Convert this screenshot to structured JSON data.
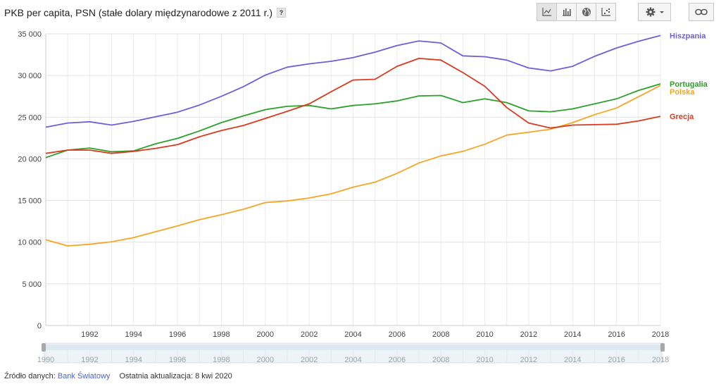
{
  "header": {
    "title": "PKB per capita, PSN (stałe dolary międzynarodowe z 2011 r.)",
    "help_label": "?"
  },
  "toolbar": {
    "buttons": [
      {
        "name": "line-chart-button",
        "icon": "line-chart-icon",
        "selected": true
      },
      {
        "name": "bar-chart-button",
        "icon": "bar-chart-icon",
        "selected": false
      },
      {
        "name": "map-button",
        "icon": "globe-icon",
        "selected": false
      },
      {
        "name": "scatter-button",
        "icon": "scatter-icon",
        "selected": false
      }
    ],
    "settings_icon": "gear-icon",
    "link_icon": "link-icon"
  },
  "footer": {
    "source_label": "Źródło danych:",
    "source_link": "Bank Światowy",
    "updated": "Ostatnia aktualizacja: 8 kwi 2020"
  },
  "range_slider": {
    "start": 1990,
    "end": 2018,
    "tick_labels": [
      "1990",
      "1992",
      "1994",
      "1996",
      "1998",
      "2000",
      "2002",
      "2004",
      "2006",
      "2008",
      "2010",
      "2012",
      "2014",
      "2016",
      "2018"
    ]
  },
  "chart_data": {
    "type": "line",
    "title": "PKB per capita, PSN (stałe dolary międzynarodowe z 2011 r.)",
    "x": [
      1990,
      1991,
      1992,
      1993,
      1994,
      1995,
      1996,
      1997,
      1998,
      1999,
      2000,
      2001,
      2002,
      2003,
      2004,
      2005,
      2006,
      2007,
      2008,
      2009,
      2010,
      2011,
      2012,
      2013,
      2014,
      2015,
      2016,
      2017,
      2018
    ],
    "xlim": [
      1990,
      2018
    ],
    "ylim": [
      0,
      35000
    ],
    "y_ticks": [
      0,
      5000,
      10000,
      15000,
      20000,
      25000,
      30000,
      35000
    ],
    "y_tick_labels": [
      "0",
      "5 000",
      "10 000",
      "15 000",
      "20 000",
      "25 000",
      "30 000",
      "35 000"
    ],
    "x_ticks": [
      1992,
      1994,
      1996,
      1998,
      2000,
      2002,
      2004,
      2006,
      2008,
      2010,
      2012,
      2014,
      2016,
      2018
    ],
    "x_tick_labels": [
      "1992",
      "1994",
      "1996",
      "1998",
      "2000",
      "2002",
      "2004",
      "2006",
      "2008",
      "2010",
      "2012",
      "2014",
      "2016",
      "2018"
    ],
    "grid": true,
    "legend": "right, at line ends",
    "series": [
      {
        "name": "Hiszpania",
        "color": "#6f5ed8",
        "values": [
          23800,
          24300,
          24450,
          24050,
          24500,
          25050,
          25600,
          26450,
          27500,
          28650,
          30050,
          31000,
          31400,
          31700,
          32150,
          32800,
          33600,
          34150,
          33900,
          32350,
          32250,
          31850,
          30900,
          30550,
          31100,
          32300,
          33300,
          34100,
          34800
        ]
      },
      {
        "name": "Portugalia",
        "color": "#2ca02c",
        "values": [
          20150,
          21050,
          21300,
          20850,
          20950,
          21800,
          22450,
          23350,
          24350,
          25150,
          25900,
          26300,
          26400,
          26000,
          26400,
          26600,
          26950,
          27550,
          27600,
          26750,
          27200,
          26750,
          25750,
          25650,
          26000,
          26600,
          27200,
          28200,
          29000
        ]
      },
      {
        "name": "Polska",
        "color": "#f5a623",
        "values": [
          10300,
          9550,
          9750,
          10050,
          10550,
          11250,
          11950,
          12700,
          13300,
          13950,
          14750,
          14950,
          15300,
          15800,
          16600,
          17200,
          18250,
          19500,
          20350,
          20900,
          21750,
          22850,
          23200,
          23550,
          24350,
          25300,
          26100,
          27450,
          28800
        ]
      },
      {
        "name": "Grecja",
        "color": "#d83b1e",
        "values": [
          20650,
          21050,
          21050,
          20650,
          20900,
          21250,
          21700,
          22650,
          23400,
          24000,
          24850,
          25700,
          26600,
          28050,
          29450,
          29550,
          31100,
          32050,
          31850,
          30350,
          28700,
          26150,
          24300,
          23700,
          24050,
          24100,
          24150,
          24550,
          25100
        ]
      }
    ]
  }
}
